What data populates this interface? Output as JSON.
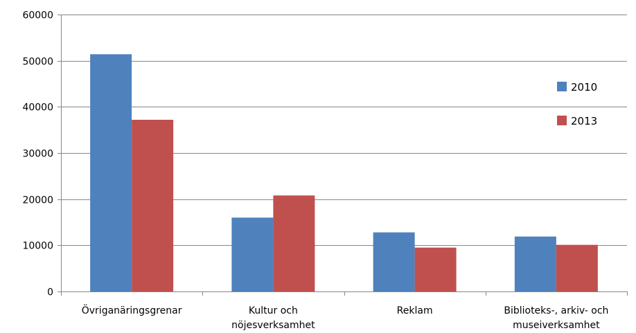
{
  "chart_data": {
    "type": "bar",
    "categories": [
      [
        "Övriganäringsgrenar"
      ],
      [
        "Kultur och",
        "nöjesverksamhet"
      ],
      [
        "Reklam"
      ],
      [
        "Biblioteks-, arkiv- och",
        "museiverksamhet"
      ]
    ],
    "series": [
      {
        "name": "2010",
        "color": "#4f81bd",
        "values": [
          51400,
          16000,
          12800,
          11900
        ]
      },
      {
        "name": "2013",
        "color": "#c0504d",
        "values": [
          37200,
          20800,
          9500,
          10100
        ]
      }
    ],
    "yticks": [
      "0",
      "10000",
      "20000",
      "30000",
      "40000",
      "50000",
      "60000"
    ],
    "ylim": [
      0,
      60000
    ],
    "grid": true,
    "legend_position": "right"
  }
}
